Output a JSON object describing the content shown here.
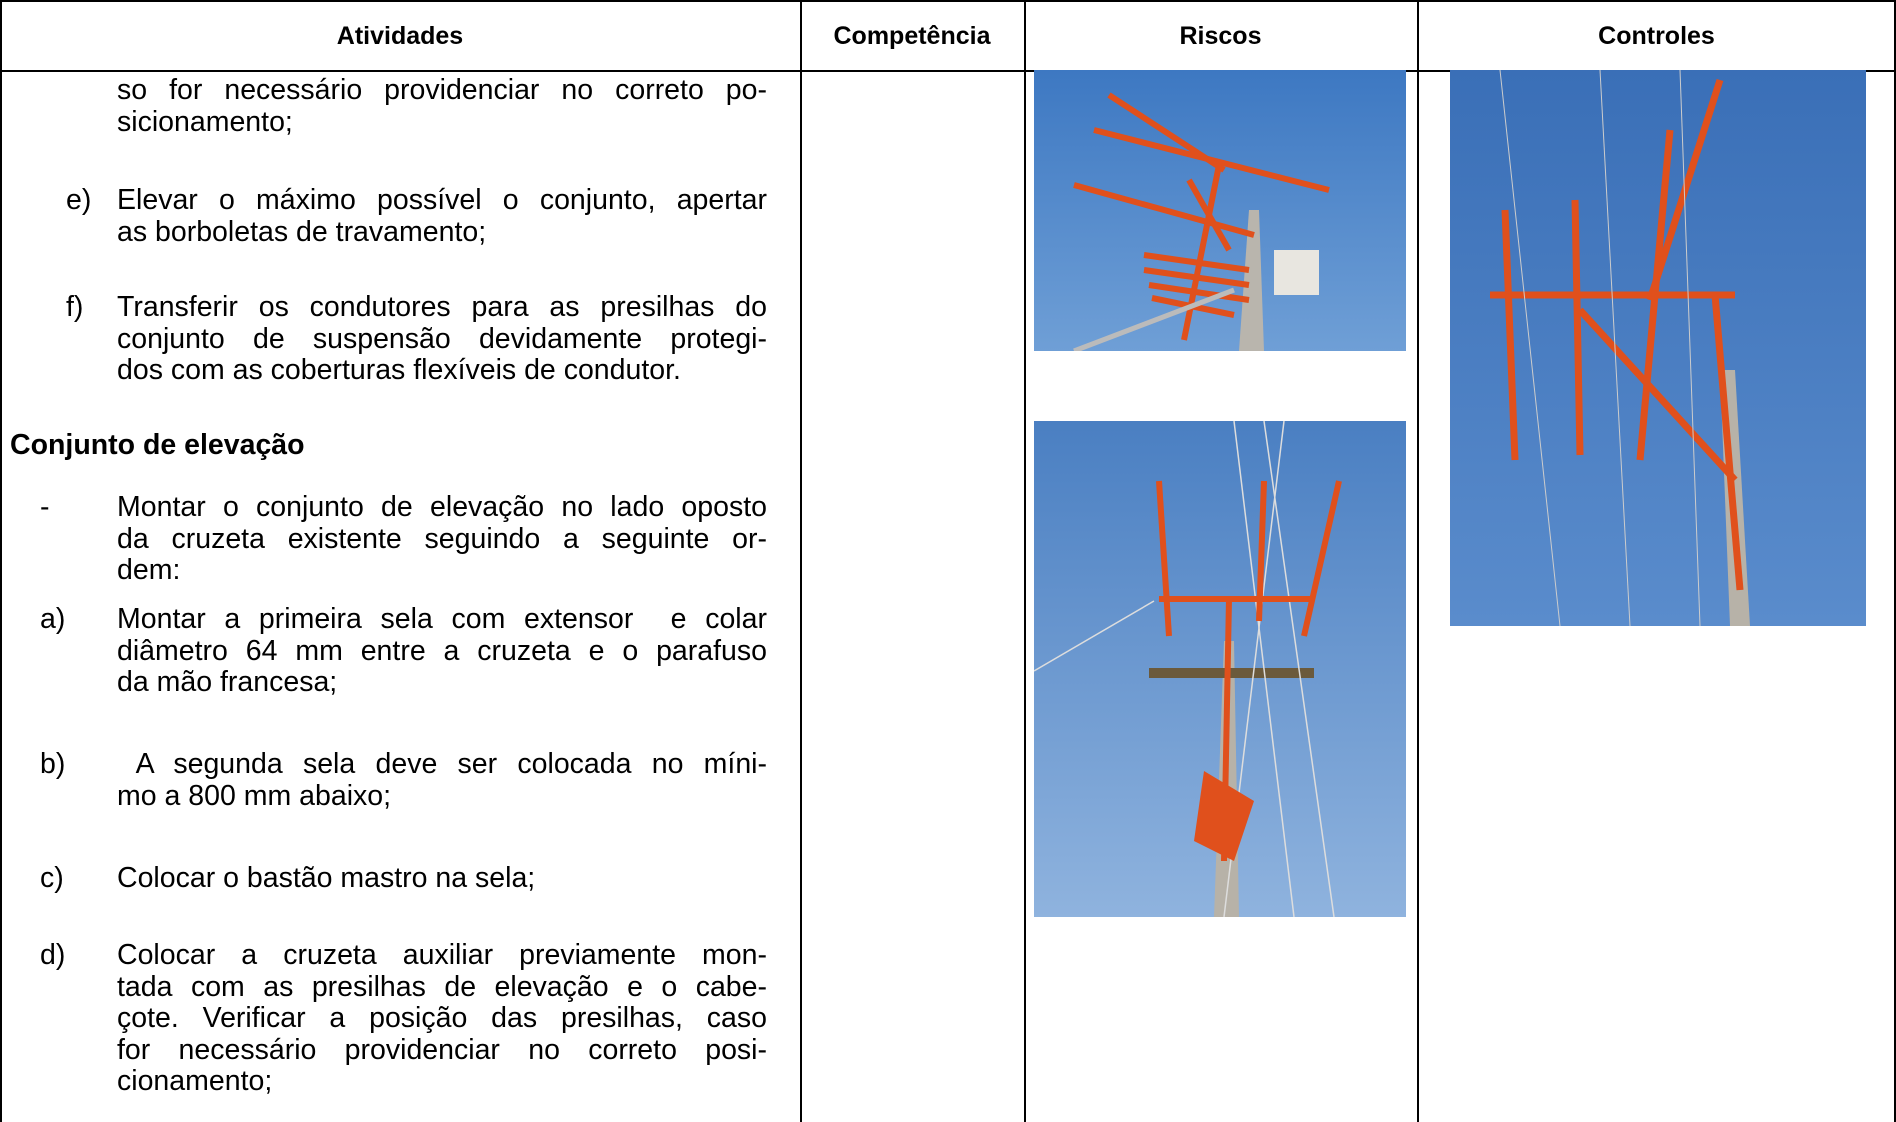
{
  "header": {
    "columns": [
      "Atividades",
      "Competência",
      "Riscos",
      "Controles"
    ]
  },
  "activities": {
    "items": [
      {
        "lines": [
          "so for necessário providenciar no correto po-",
          "sicionamento;"
        ]
      },
      {
        "label": "e)",
        "lines": [
          "Elevar o máximo possível o conjunto, apertar",
          "as borboletas de travamento;"
        ]
      },
      {
        "label": "f)",
        "lines": [
          "Transferir os condutores para as presilhas do",
          "conjunto de suspensão devidamente protegi-",
          "dos com as coberturas flexíveis de condutor."
        ]
      },
      {
        "label": "-",
        "lines": [
          "Montar o conjunto de elevação no lado oposto",
          "da cruzeta existente seguindo a seguinte or-",
          "dem:"
        ]
      },
      {
        "label": "a)",
        "lines": [
          "Montar a primeira sela com extensor  e colar",
          "diâmetro 64 mm entre a cruzeta e o parafuso",
          "da mão francesa;"
        ]
      },
      {
        "label": "b)",
        "lines": [
          " A segunda sela deve ser colocada no míni-",
          "mo a 800 mm abaixo;"
        ]
      },
      {
        "label": "c)",
        "lines": [
          "Colocar o bastão mastro na sela;"
        ]
      },
      {
        "label": "d)",
        "lines": [
          "Colocar a cruzeta auxiliar previamente mon-",
          "tada com as presilhas de elevação e o cabe-",
          "çote. Verificar a posição das presilhas, caso",
          "for necessário providenciar no correto posi-",
          "cionamento;"
        ]
      }
    ],
    "heading": "Conjunto de elevação"
  }
}
